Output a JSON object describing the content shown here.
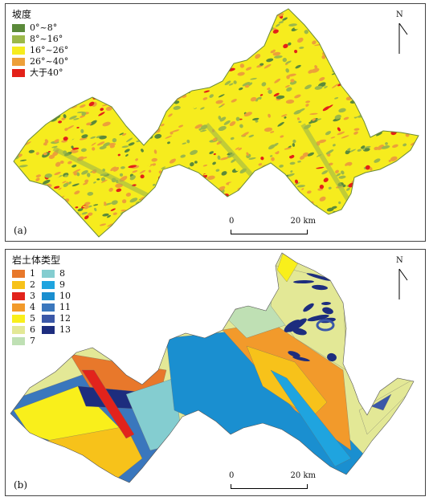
{
  "panel_a": {
    "label": "(a)",
    "legend_title": "坡度",
    "legend": [
      {
        "label": "0°~8°",
        "color": "#5b8a3a"
      },
      {
        "label": "8°~16°",
        "color": "#9cb84a"
      },
      {
        "label": "16°~26°",
        "color": "#f6ec1e"
      },
      {
        "label": "26°~40°",
        "color": "#eda03a"
      },
      {
        "label": "大于40°",
        "color": "#e32119"
      }
    ],
    "north": "N",
    "scale": {
      "zero": "0",
      "end": "20 km"
    }
  },
  "panel_b": {
    "label": "(b)",
    "legend_title": "岩土体类型",
    "legend": [
      {
        "label": "1",
        "color": "#e8782b"
      },
      {
        "label": "2",
        "color": "#f7c21a"
      },
      {
        "label": "3",
        "color": "#e2231c"
      },
      {
        "label": "4",
        "color": "#f29a2b"
      },
      {
        "label": "5",
        "color": "#f9ef1b"
      },
      {
        "label": "6",
        "color": "#e3e896"
      },
      {
        "label": "7",
        "color": "#bfe0b4"
      },
      {
        "label": "8",
        "color": "#84cdd0"
      },
      {
        "label": "9",
        "color": "#1fa4df"
      },
      {
        "label": "10",
        "color": "#1a8fd0"
      },
      {
        "label": "11",
        "color": "#3a77bd"
      },
      {
        "label": "12",
        "color": "#3b58a8"
      },
      {
        "label": "13",
        "color": "#1d2d7e"
      }
    ],
    "north": "N",
    "scale": {
      "zero": "0",
      "end": "20 km"
    }
  }
}
